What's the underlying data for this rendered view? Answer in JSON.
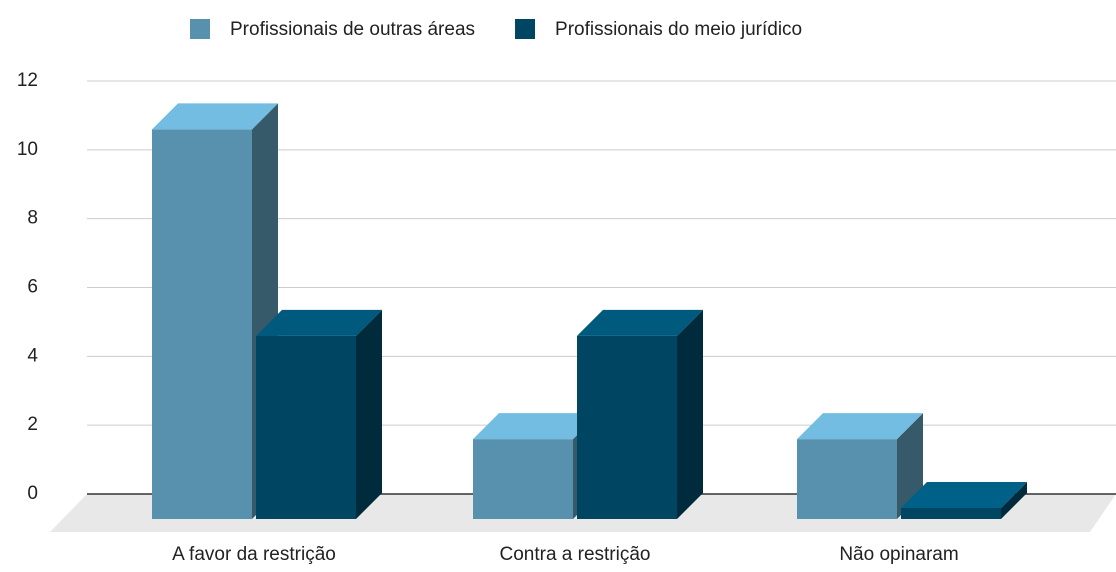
{
  "chart_data": {
    "type": "bar",
    "categories": [
      "A favor da restrição",
      "Contra a restrição",
      "Não opinaram"
    ],
    "series": [
      {
        "name": "Profissionais de outras áreas",
        "color": "#5891ad",
        "values": [
          11,
          2,
          2
        ]
      },
      {
        "name": "Profissionais do meio jurídico",
        "color": "#004561",
        "values": [
          5,
          5,
          0
        ]
      }
    ],
    "ylim": [
      0,
      12
    ],
    "yticks": [
      0,
      2,
      4,
      6,
      8,
      10,
      12
    ],
    "grid": true,
    "legend": "top"
  }
}
